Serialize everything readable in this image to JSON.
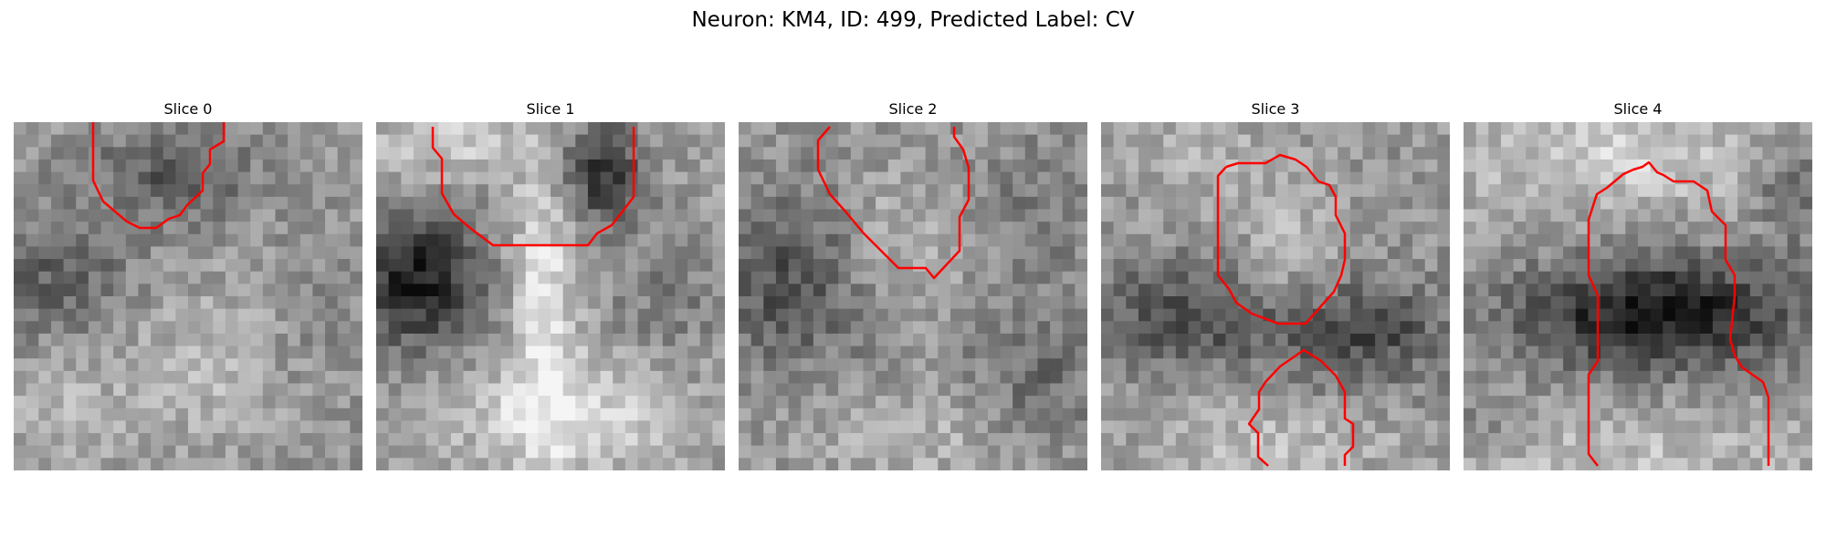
{
  "figure": {
    "title": "Neuron: KM4, ID: 499, Predicted Label: CV"
  },
  "colors": {
    "contour": "#ff0000",
    "background": "#ffffff"
  },
  "panels": [
    {
      "label": "Slice 0"
    },
    {
      "label": "Slice 1"
    },
    {
      "label": "Slice 2"
    },
    {
      "label": "Slice 3"
    },
    {
      "label": "Slice 4"
    }
  ]
}
